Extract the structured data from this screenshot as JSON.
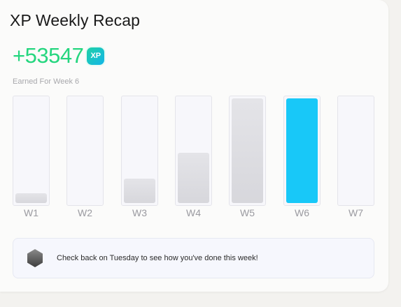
{
  "card": {
    "title": "XP Weekly Recap",
    "xp_value": "+53547",
    "xp_badge": "XP",
    "subtitle": "Earned For Week 6"
  },
  "weeks": [
    {
      "label": "W1",
      "level": 0.09,
      "current": false
    },
    {
      "label": "W2",
      "level": 0.0,
      "current": false
    },
    {
      "label": "W3",
      "level": 0.23,
      "current": false
    },
    {
      "label": "W4",
      "level": 0.48,
      "current": false
    },
    {
      "label": "W5",
      "level": 1.0,
      "current": false
    },
    {
      "label": "W6",
      "level": 1.0,
      "current": true
    },
    {
      "label": "W7",
      "level": 0.0,
      "current": false
    }
  ],
  "notice": {
    "icon": "hexagon-badge-icon",
    "text": "Check back on Tuesday to see how you've done this week!"
  },
  "colors": {
    "xp_green": "#25d67f",
    "current_bar": "#18c8f8"
  }
}
